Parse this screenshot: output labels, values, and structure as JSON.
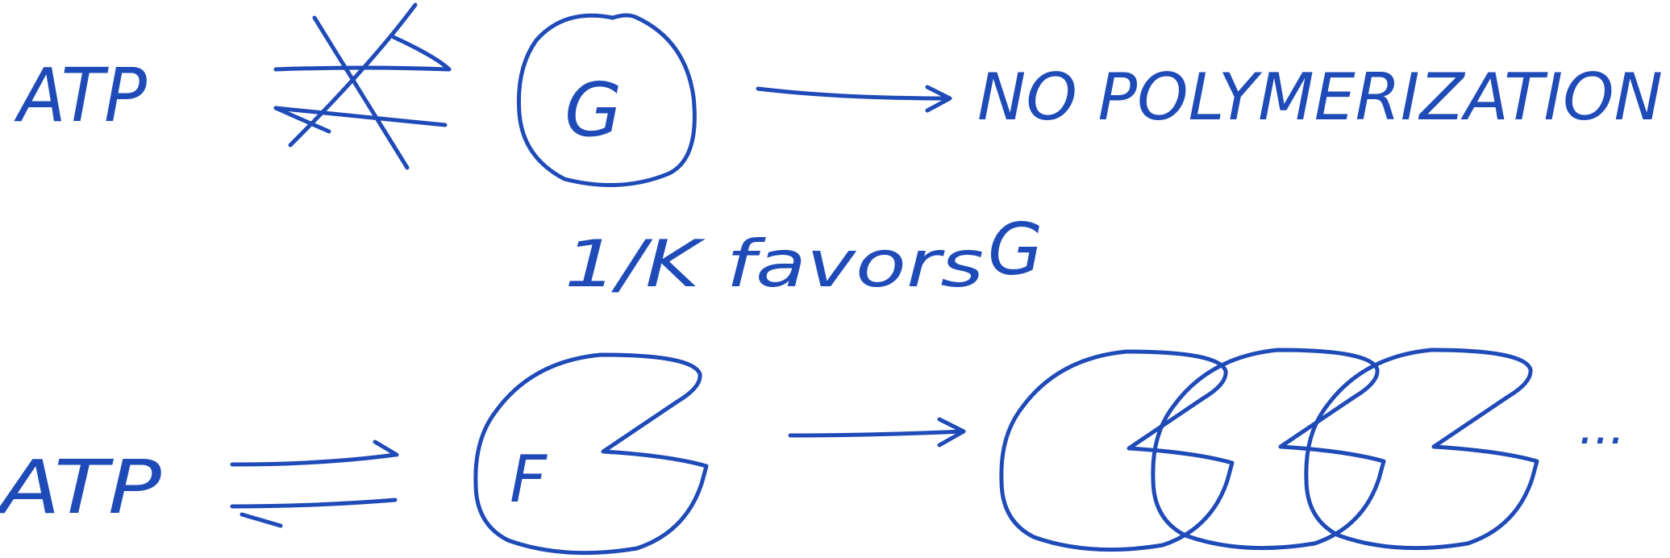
{
  "ink_color": "#1f4bb8",
  "top_row": {
    "reactant_label": "ATP",
    "crossed_equilibrium": "not-in-equilibrium-crossed-arrows",
    "monomer_label": "G",
    "result_text": "NO POLYMERIZATION"
  },
  "middle_row": {
    "constraint_text": "1/K favors",
    "favored_label": "G"
  },
  "bottom_row": {
    "reactant_label": "ATP",
    "monomer_label": "F",
    "polymer_ellipsis": "..."
  }
}
